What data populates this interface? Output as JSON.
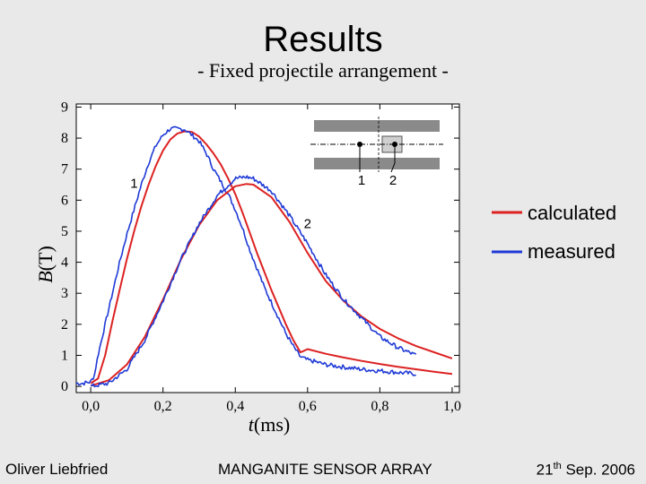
{
  "slide": {
    "title": "Results",
    "subtitle": "- Fixed projectile arrangement -"
  },
  "footer": {
    "author": "Oliver Liebfried",
    "project": "MANGANITE SENSOR ARRAY",
    "date_day": "21",
    "date_suffix": "th",
    "date_rest": " Sep. 2006"
  },
  "colors": {
    "calculated": "#dd2222",
    "measured": "#1f3ad6"
  },
  "inset": {
    "sensor_labels": [
      "1",
      "2"
    ]
  },
  "chart_data": {
    "type": "line",
    "xlabel_var": "t",
    "xlabel_unit": "(ms)",
    "ylabel_var": "B",
    "ylabel_unit": "(T)",
    "xlim": [
      -0.04,
      1.02
    ],
    "ylim": [
      -0.2,
      9.1
    ],
    "x_ticks": [
      0.0,
      0.2,
      0.4,
      0.6,
      0.8,
      1.0
    ],
    "x_tick_labels": [
      "0,0",
      "0,2",
      "0,4",
      "0,6",
      "0,8",
      "1,0"
    ],
    "y_ticks": [
      0,
      1,
      2,
      3,
      4,
      5,
      6,
      7,
      8,
      9
    ],
    "y_tick_labels": [
      "0",
      "1",
      "2",
      "3",
      "4",
      "5",
      "6",
      "7",
      "8",
      "9"
    ],
    "legend": {
      "placement": "right",
      "entries": [
        "calculated",
        "measured"
      ]
    },
    "curve_labels": [
      {
        "text": "1",
        "x": 0.12,
        "y": 6.4
      },
      {
        "text": "2",
        "x": 0.6,
        "y": 5.1
      }
    ],
    "series": [
      {
        "name": "calculated",
        "sensor": "1",
        "x": [
          0.0,
          0.02,
          0.04,
          0.06,
          0.08,
          0.1,
          0.12,
          0.14,
          0.16,
          0.18,
          0.2,
          0.22,
          0.24,
          0.26,
          0.28,
          0.3,
          0.32,
          0.34,
          0.36,
          0.38,
          0.4,
          0.42,
          0.44,
          0.46,
          0.48,
          0.5,
          0.52,
          0.54,
          0.56,
          0.58,
          0.585,
          0.6,
          0.65,
          0.7,
          0.75,
          0.8,
          0.85,
          0.9,
          0.95,
          1.0
        ],
        "y": [
          0.1,
          0.25,
          1.0,
          2.1,
          3.1,
          4.1,
          5.0,
          5.8,
          6.5,
          7.1,
          7.6,
          7.95,
          8.15,
          8.22,
          8.2,
          8.05,
          7.8,
          7.5,
          7.15,
          6.7,
          6.2,
          5.6,
          4.95,
          4.3,
          3.7,
          3.1,
          2.55,
          2.0,
          1.5,
          1.1,
          1.12,
          1.2,
          1.05,
          0.93,
          0.82,
          0.72,
          0.63,
          0.55,
          0.47,
          0.4
        ]
      },
      {
        "name": "measured",
        "sensor": "1",
        "x": [
          -0.04,
          -0.02,
          0.0,
          0.01,
          0.02,
          0.04,
          0.06,
          0.08,
          0.1,
          0.12,
          0.14,
          0.16,
          0.18,
          0.2,
          0.22,
          0.24,
          0.26,
          0.28,
          0.3,
          0.32,
          0.34,
          0.36,
          0.38,
          0.4,
          0.42,
          0.44,
          0.46,
          0.48,
          0.5,
          0.52,
          0.54,
          0.56,
          0.58,
          0.6,
          0.62,
          0.65,
          0.7,
          0.75,
          0.8,
          0.85,
          0.9
        ],
        "y": [
          0.1,
          0.1,
          0.15,
          0.35,
          1.0,
          2.0,
          3.0,
          4.0,
          4.9,
          5.7,
          6.5,
          7.2,
          7.75,
          8.1,
          8.3,
          8.3,
          8.28,
          8.1,
          7.9,
          7.5,
          7.0,
          6.6,
          6.2,
          5.7,
          5.1,
          4.4,
          3.8,
          3.2,
          2.7,
          2.2,
          1.7,
          1.3,
          0.95,
          0.85,
          0.8,
          0.7,
          0.62,
          0.55,
          0.5,
          0.45,
          0.4
        ]
      },
      {
        "name": "calculated",
        "sensor": "2",
        "x": [
          0.0,
          0.05,
          0.1,
          0.15,
          0.2,
          0.25,
          0.3,
          0.35,
          0.4,
          0.43,
          0.45,
          0.5,
          0.55,
          0.6,
          0.65,
          0.7,
          0.75,
          0.8,
          0.85,
          0.9,
          0.95,
          1.0
        ],
        "y": [
          0.02,
          0.2,
          0.7,
          1.6,
          2.8,
          4.1,
          5.2,
          6.0,
          6.45,
          6.52,
          6.5,
          6.1,
          5.3,
          4.3,
          3.4,
          2.75,
          2.25,
          1.85,
          1.55,
          1.3,
          1.1,
          0.9
        ]
      },
      {
        "name": "measured",
        "sensor": "2",
        "x": [
          0.0,
          0.05,
          0.1,
          0.15,
          0.2,
          0.25,
          0.3,
          0.35,
          0.4,
          0.43,
          0.45,
          0.5,
          0.55,
          0.6,
          0.65,
          0.7,
          0.75,
          0.8,
          0.85,
          0.9
        ],
        "y": [
          0.0,
          0.1,
          0.55,
          1.5,
          2.75,
          4.1,
          5.25,
          6.15,
          6.7,
          6.75,
          6.7,
          6.3,
          5.5,
          4.6,
          3.6,
          2.8,
          2.2,
          1.6,
          1.25,
          1.0
        ]
      }
    ]
  }
}
